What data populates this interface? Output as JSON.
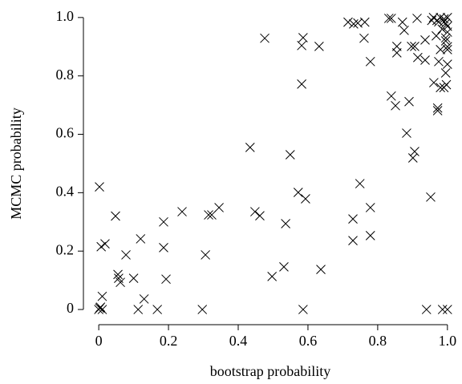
{
  "chart_data": {
    "type": "scatter",
    "xlabel": "bootstrap probability",
    "ylabel": "MCMC probability",
    "color": "#000000",
    "x": [
      0,
      0.005,
      0.01,
      0.003,
      0.002,
      0.01,
      0.007,
      0.018,
      0.048,
      0.057,
      0.062,
      0.055,
      0.078,
      0.1,
      0.113,
      0.12,
      0.13,
      0.168,
      0.186,
      0.186,
      0.193,
      0.239,
      0.297,
      0.306,
      0.315,
      0.324,
      0.345,
      0.434,
      0.448,
      0.462,
      0.476,
      0.497,
      0.531,
      0.536,
      0.549,
      0.572,
      0.593,
      0.582,
      0.582,
      0.586,
      0.586,
      0.637,
      0.632,
      0.729,
      0.729,
      0.749,
      0.761,
      0.763,
      0.779,
      0.779,
      0.779,
      0.715,
      0.731,
      0.743,
      0.832,
      0.839,
      0.839,
      0.851,
      0.855,
      0.855,
      0.871,
      0.876,
      0.883,
      0.89,
      0.897,
      0.906,
      0.901,
      0.906,
      0.913,
      0.915,
      0.94,
      0.936,
      0.936,
      0.952,
      0.968,
      0.975,
      0.961,
      0.972,
      0.972,
      0.986,
      1,
      0.96,
      0.97,
      0.98,
      0.99,
      1,
      0.995,
      1,
      0.985,
      0.99,
      0.975,
      0.955,
      1,
      0.995,
      1,
      0.98,
      0.99,
      0.997,
      1,
      0.995,
      1,
      0.995,
      0.98
    ],
    "values": [
      0,
      0.008,
      0,
      0.005,
      0.42,
      0.045,
      0.215,
      0.225,
      0.32,
      0.107,
      0.093,
      0.12,
      0.187,
      0.107,
      0,
      0.242,
      0.036,
      0,
      0.3,
      0.212,
      0.104,
      0.335,
      0,
      0.187,
      0.324,
      0.324,
      0.349,
      0.555,
      0.335,
      0.321,
      0.929,
      0.113,
      0.146,
      0.294,
      0.53,
      0.401,
      0.379,
      0.772,
      0.904,
      0.931,
      0,
      0.137,
      0.901,
      0.31,
      0.236,
      0.431,
      0.929,
      0.984,
      0.349,
      0.253,
      0.849,
      0.984,
      0.978,
      0.981,
      0.997,
      0.997,
      0.731,
      0.698,
      0.901,
      0.879,
      0.984,
      0.956,
      0.604,
      0.712,
      0.901,
      0.901,
      0.519,
      0.541,
      0.997,
      0.863,
      0,
      0.854,
      0.923,
      0.385,
      0.937,
      0.849,
      0.777,
      0.681,
      0.69,
      0,
      0,
      1,
      0.99,
      1,
      0.995,
      1,
      0.98,
      0.97,
      0.96,
      0.985,
      0.985,
      0.99,
      0.95,
      0.93,
      0.9,
      0.76,
      0.76,
      0.77,
      0.84,
      0.81,
      0.89,
      0.92,
      0.89
    ],
    "xlim": [
      -0.044,
      1.028
    ],
    "ylim": [
      -0.052,
      1.027
    ],
    "xticks": [
      0,
      0.2,
      0.4,
      0.6,
      0.8,
      {
        "value": 1,
        "label": "1.0"
      }
    ],
    "yticks": [
      0,
      0.2,
      0.4,
      0.6,
      0.8,
      {
        "value": 1,
        "label": "1.0"
      }
    ]
  }
}
